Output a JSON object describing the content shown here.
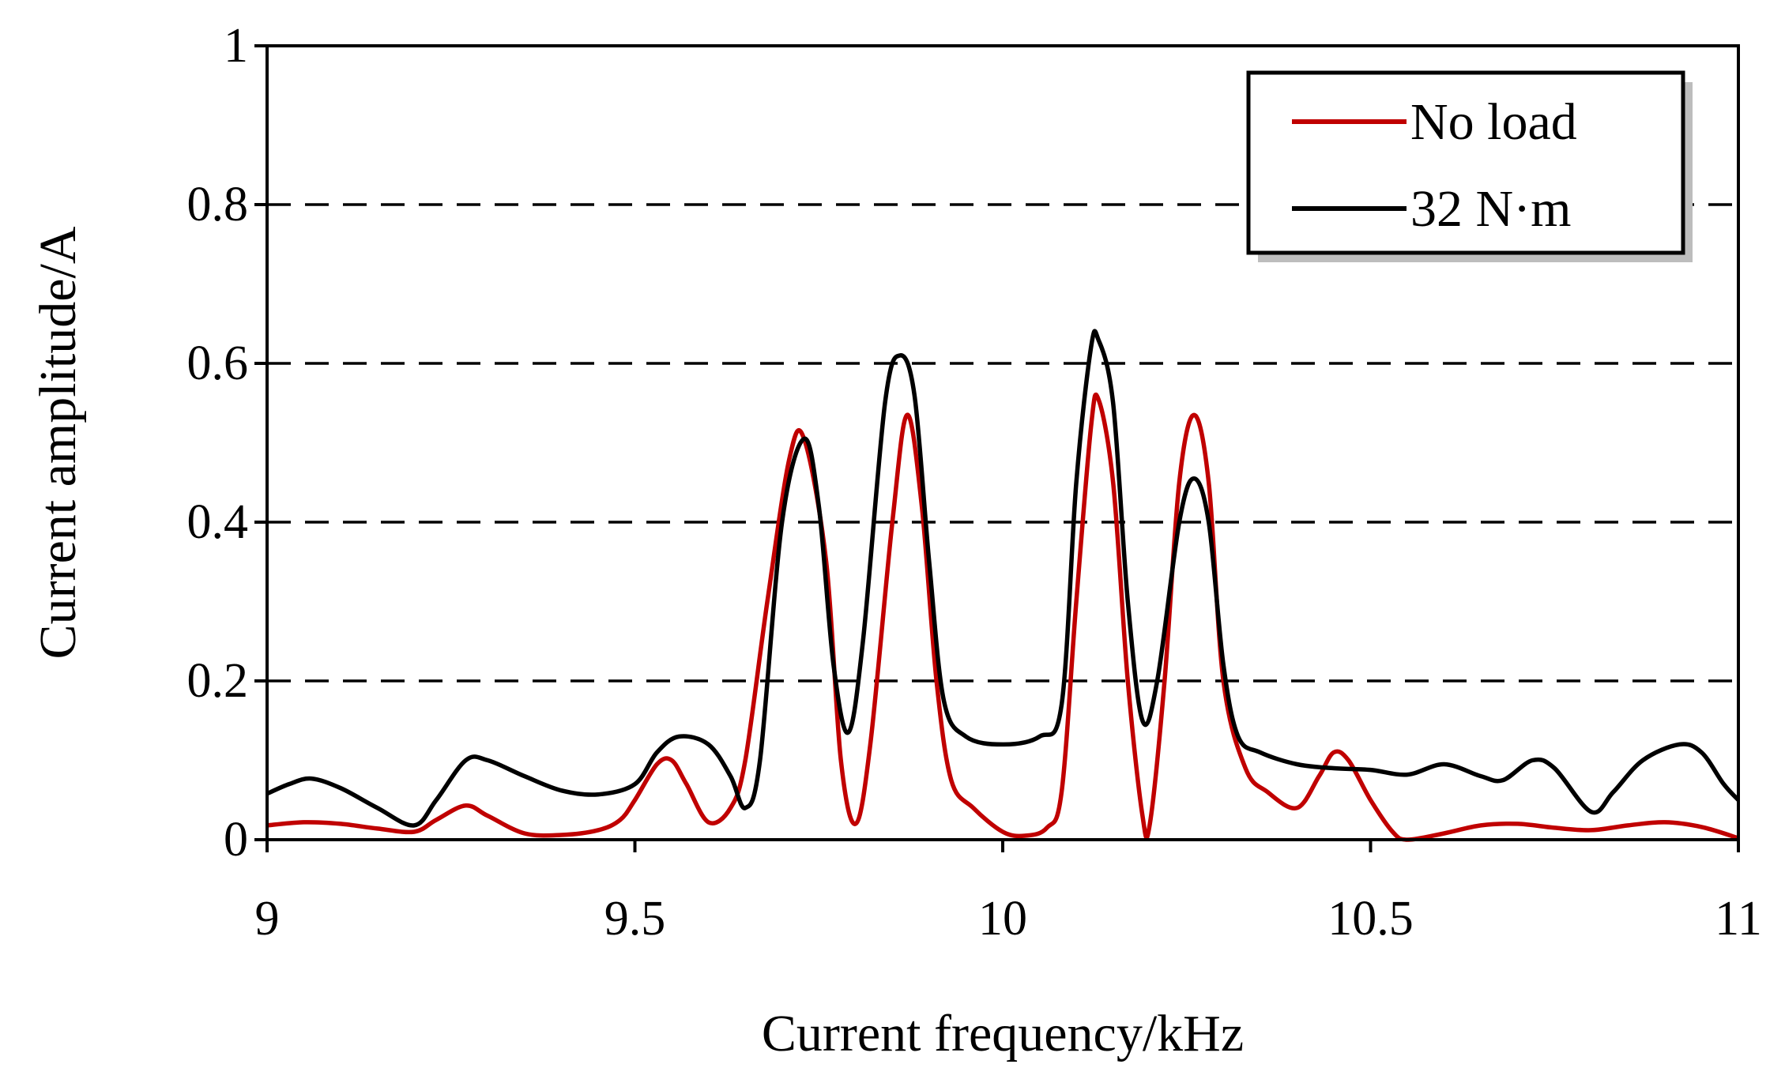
{
  "chart_data": {
    "type": "line",
    "title": "",
    "xlabel": "Current frequency/kHz",
    "ylabel": "Current amplitude/A",
    "xlim": [
      9,
      11
    ],
    "ylim": [
      0,
      1
    ],
    "x_ticks": [
      "9",
      "9.5",
      "10",
      "10.5",
      "11"
    ],
    "y_ticks": [
      "0",
      "0.2",
      "0.4",
      "0.6",
      "0.8",
      "1"
    ],
    "grid": "horizontal dashed",
    "legend_position": "top-right",
    "series": [
      {
        "name": "No load",
        "color": "#c00000",
        "points": [
          [
            9.0,
            0.018
          ],
          [
            9.05,
            0.022
          ],
          [
            9.1,
            0.02
          ],
          [
            9.15,
            0.014
          ],
          [
            9.2,
            0.01
          ],
          [
            9.23,
            0.025
          ],
          [
            9.27,
            0.043
          ],
          [
            9.3,
            0.03
          ],
          [
            9.35,
            0.008
          ],
          [
            9.4,
            0.006
          ],
          [
            9.45,
            0.012
          ],
          [
            9.48,
            0.025
          ],
          [
            9.5,
            0.05
          ],
          [
            9.53,
            0.095
          ],
          [
            9.55,
            0.1
          ],
          [
            9.57,
            0.07
          ],
          [
            9.6,
            0.022
          ],
          [
            9.63,
            0.04
          ],
          [
            9.65,
            0.1
          ],
          [
            9.68,
            0.3
          ],
          [
            9.71,
            0.48
          ],
          [
            9.73,
            0.505
          ],
          [
            9.76,
            0.35
          ],
          [
            9.78,
            0.1
          ],
          [
            9.8,
            0.02
          ],
          [
            9.82,
            0.12
          ],
          [
            9.85,
            0.4
          ],
          [
            9.87,
            0.535
          ],
          [
            9.89,
            0.42
          ],
          [
            9.91,
            0.2
          ],
          [
            9.93,
            0.075
          ],
          [
            9.96,
            0.04
          ],
          [
            10.0,
            0.01
          ],
          [
            10.03,
            0.005
          ],
          [
            10.06,
            0.015
          ],
          [
            10.08,
            0.06
          ],
          [
            10.1,
            0.3
          ],
          [
            10.12,
            0.52
          ],
          [
            10.13,
            0.555
          ],
          [
            10.15,
            0.45
          ],
          [
            10.17,
            0.2
          ],
          [
            10.19,
            0.03
          ],
          [
            10.2,
            0.02
          ],
          [
            10.22,
            0.2
          ],
          [
            10.24,
            0.45
          ],
          [
            10.26,
            0.535
          ],
          [
            10.28,
            0.45
          ],
          [
            10.3,
            0.2
          ],
          [
            10.33,
            0.09
          ],
          [
            10.36,
            0.06
          ],
          [
            10.4,
            0.04
          ],
          [
            10.43,
            0.08
          ],
          [
            10.45,
            0.11
          ],
          [
            10.47,
            0.1
          ],
          [
            10.5,
            0.05
          ],
          [
            10.53,
            0.01
          ],
          [
            10.55,
            0.0
          ],
          [
            10.6,
            0.008
          ],
          [
            10.65,
            0.018
          ],
          [
            10.7,
            0.02
          ],
          [
            10.75,
            0.015
          ],
          [
            10.8,
            0.012
          ],
          [
            10.85,
            0.018
          ],
          [
            10.9,
            0.022
          ],
          [
            10.95,
            0.016
          ],
          [
            11.0,
            0.002
          ]
        ]
      },
      {
        "name": "32 N·m",
        "color": "#000000",
        "points": [
          [
            9.0,
            0.058
          ],
          [
            9.03,
            0.07
          ],
          [
            9.06,
            0.077
          ],
          [
            9.1,
            0.065
          ],
          [
            9.15,
            0.04
          ],
          [
            9.2,
            0.018
          ],
          [
            9.23,
            0.05
          ],
          [
            9.27,
            0.1
          ],
          [
            9.3,
            0.1
          ],
          [
            9.35,
            0.08
          ],
          [
            9.4,
            0.062
          ],
          [
            9.45,
            0.057
          ],
          [
            9.5,
            0.07
          ],
          [
            9.53,
            0.11
          ],
          [
            9.56,
            0.13
          ],
          [
            9.6,
            0.12
          ],
          [
            9.63,
            0.08
          ],
          [
            9.65,
            0.04
          ],
          [
            9.67,
            0.1
          ],
          [
            9.7,
            0.4
          ],
          [
            9.73,
            0.505
          ],
          [
            9.75,
            0.42
          ],
          [
            9.77,
            0.22
          ],
          [
            9.79,
            0.135
          ],
          [
            9.81,
            0.25
          ],
          [
            9.84,
            0.55
          ],
          [
            9.86,
            0.61
          ],
          [
            9.88,
            0.56
          ],
          [
            9.9,
            0.35
          ],
          [
            9.92,
            0.175
          ],
          [
            9.95,
            0.13
          ],
          [
            10.0,
            0.12
          ],
          [
            10.05,
            0.13
          ],
          [
            10.08,
            0.17
          ],
          [
            10.1,
            0.45
          ],
          [
            10.12,
            0.62
          ],
          [
            10.13,
            0.63
          ],
          [
            10.15,
            0.55
          ],
          [
            10.17,
            0.3
          ],
          [
            10.19,
            0.15
          ],
          [
            10.21,
            0.2
          ],
          [
            10.24,
            0.4
          ],
          [
            10.26,
            0.455
          ],
          [
            10.28,
            0.4
          ],
          [
            10.3,
            0.22
          ],
          [
            10.32,
            0.13
          ],
          [
            10.35,
            0.11
          ],
          [
            10.4,
            0.095
          ],
          [
            10.45,
            0.09
          ],
          [
            10.5,
            0.088
          ],
          [
            10.55,
            0.082
          ],
          [
            10.6,
            0.095
          ],
          [
            10.65,
            0.08
          ],
          [
            10.68,
            0.075
          ],
          [
            10.72,
            0.1
          ],
          [
            10.75,
            0.09
          ],
          [
            10.8,
            0.035
          ],
          [
            10.83,
            0.06
          ],
          [
            10.87,
            0.1
          ],
          [
            10.92,
            0.12
          ],
          [
            10.95,
            0.11
          ],
          [
            10.98,
            0.07
          ],
          [
            11.0,
            0.05
          ]
        ]
      }
    ]
  }
}
